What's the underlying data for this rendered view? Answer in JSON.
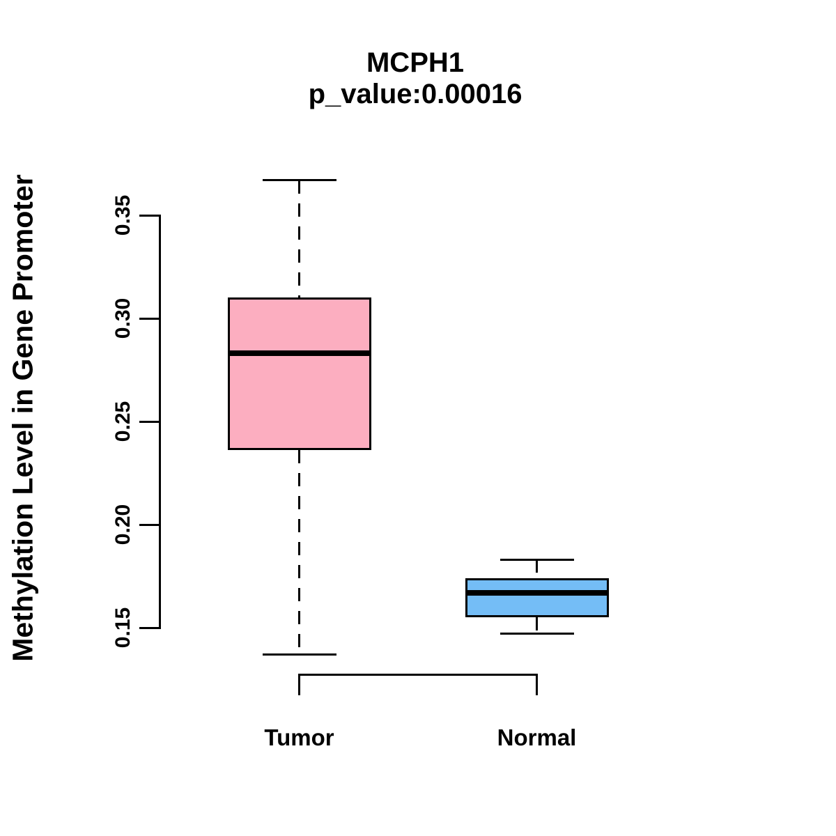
{
  "title": {
    "gene": "MCPH1",
    "subtitle": "p_value:0.00016"
  },
  "axes": {
    "y_label": "Methylation Level in Gene Promoter",
    "y_tick_labels": [
      "0.35",
      "0.30",
      "0.25",
      "0.20",
      "0.15"
    ],
    "y_tick_values": [
      0.35,
      0.3,
      0.25,
      0.2,
      0.15
    ]
  },
  "chart_data": {
    "type": "boxplot",
    "title": "MCPH1",
    "subtitle": "p_value:0.00016",
    "p_value": 0.00016,
    "xlabel": "",
    "ylabel": "Methylation Level in Gene Promoter",
    "ylim": [
      0.13,
      0.37
    ],
    "y_ticks": [
      0.15,
      0.2,
      0.25,
      0.3,
      0.35
    ],
    "grid": false,
    "legend_position": "none",
    "categories": [
      "Tumor",
      "Normal"
    ],
    "series": [
      {
        "name": "Tumor",
        "lower_whisker": 0.137,
        "q1": 0.236,
        "median": 0.283,
        "q3": 0.31,
        "upper_whisker": 0.367,
        "fill_color": "#FCAEC0"
      },
      {
        "name": "Normal",
        "lower_whisker": 0.147,
        "q1": 0.155,
        "median": 0.167,
        "q3": 0.174,
        "upper_whisker": 0.183,
        "fill_color": "#74BDF6"
      }
    ],
    "line_color": "#000000",
    "background_color": "#ffffff"
  }
}
